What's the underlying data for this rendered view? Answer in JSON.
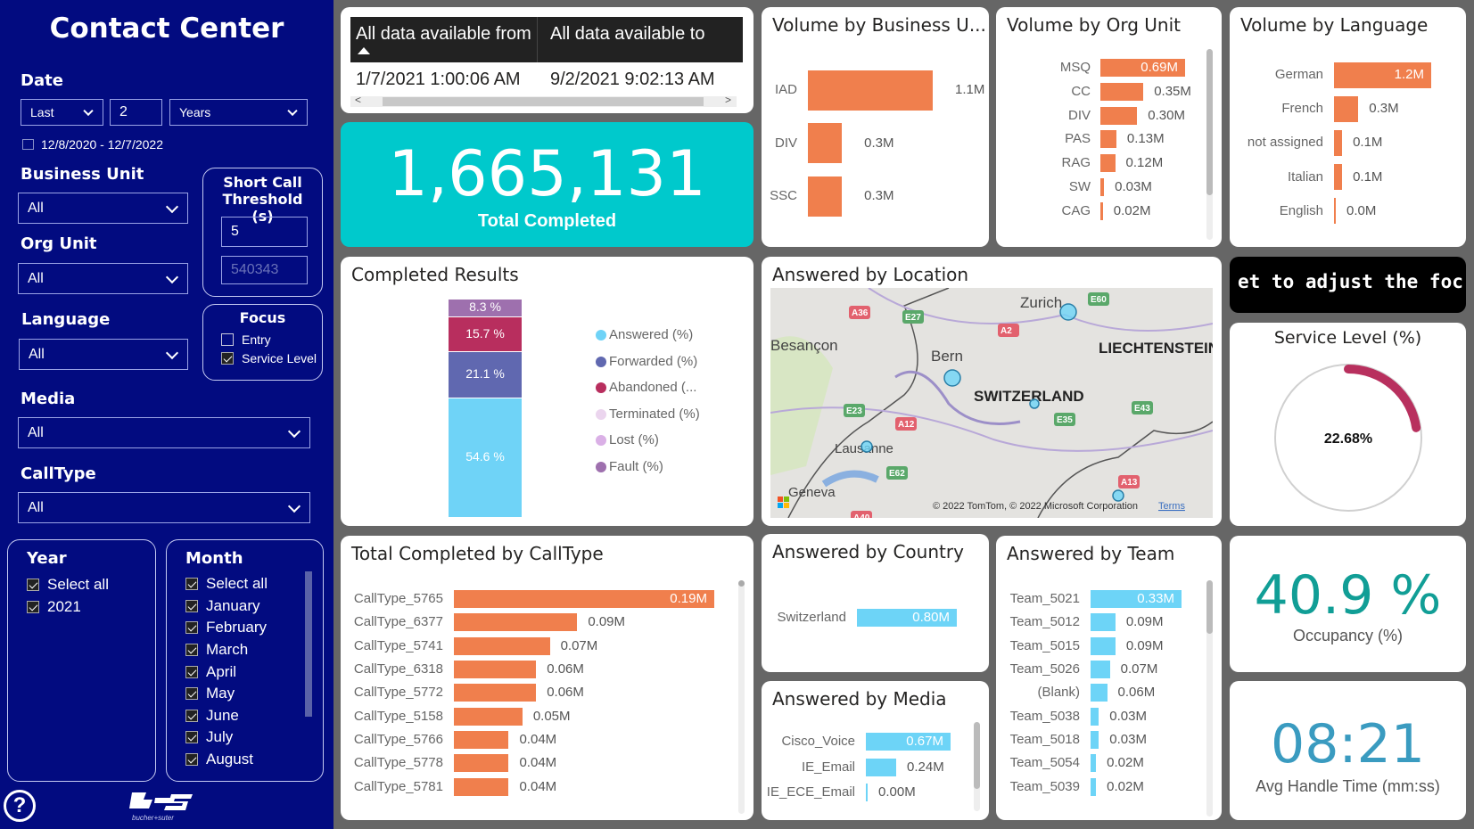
{
  "sidebar": {
    "title": "Contact Center",
    "date": {
      "label": "Date",
      "mode": "Last",
      "count": "2",
      "unit": "Years",
      "range": "12/8/2020 - 12/7/2022"
    },
    "business_unit": {
      "label": "Business Unit",
      "value": "All"
    },
    "org_unit": {
      "label": "Org Unit",
      "value": "All"
    },
    "language": {
      "label": "Language",
      "value": "All"
    },
    "media": {
      "label": "Media",
      "value": "All"
    },
    "calltype": {
      "label": "CallType",
      "value": "All"
    },
    "short_call": {
      "title": "Short Call Threshold (s)",
      "value": "5",
      "secondary": "540343"
    },
    "focus": {
      "title": "Focus",
      "options": [
        {
          "label": "Entry",
          "checked": false
        },
        {
          "label": "Service Level",
          "checked": true
        }
      ]
    },
    "year": {
      "title": "Year",
      "items": [
        {
          "label": "Select all",
          "checked": true
        },
        {
          "label": "2021",
          "checked": true
        }
      ]
    },
    "month": {
      "title": "Month",
      "items": [
        {
          "label": "Select all",
          "checked": true
        },
        {
          "label": "January",
          "checked": true
        },
        {
          "label": "February",
          "checked": true
        },
        {
          "label": "March",
          "checked": true
        },
        {
          "label": "April",
          "checked": true
        },
        {
          "label": "May",
          "checked": true
        },
        {
          "label": "June",
          "checked": true
        },
        {
          "label": "July",
          "checked": true
        },
        {
          "label": "August",
          "checked": true
        }
      ]
    },
    "help_icon": "question-circle-icon",
    "logo_text": "bucher+suter"
  },
  "availability": {
    "headers": [
      "All data available from",
      "All data available to"
    ],
    "values": [
      "1/7/2021 1:00:06 AM",
      "9/2/2021 9:02:13 AM"
    ]
  },
  "total_completed": {
    "value": "1,665,131",
    "label": "Total Completed"
  },
  "banner": {
    "text": "et to adjust the foc"
  },
  "service_level": {
    "title": "Service Level (%)",
    "value": "22.68%",
    "percent": 22.68,
    "color": "#b8305e"
  },
  "occupancy": {
    "value": "40.9 %",
    "label": "Occupancy (%)"
  },
  "aht": {
    "value": "08:21",
    "label": "Avg Handle Time (mm:ss)"
  },
  "map": {
    "title": "Answered by Location",
    "places": [
      "Zurich",
      "Bern",
      "Lausanne",
      "Geneva",
      "Besançon",
      "SWITZERLAND",
      "LIECHTENSTEIN"
    ],
    "roads": [
      "A36",
      "E27",
      "E60",
      "A2",
      "E23",
      "A12",
      "E35",
      "E43",
      "E62",
      "A13",
      "A40"
    ],
    "attribution": "© 2022 TomTom, © 2022 Microsoft Corporation",
    "terms": "Terms"
  },
  "colors": {
    "orange": "#f07f4d",
    "blue": "#6dd4f7",
    "teal": "#00c9cc",
    "sidebar": "#020b80"
  },
  "chart_data": [
    {
      "id": "bu",
      "type": "bar",
      "title": "Volume by Business U...",
      "categories": [
        "IAD",
        "DIV",
        "SSC"
      ],
      "values": [
        1.1,
        0.3,
        0.3
      ],
      "labels": [
        "1.1M",
        "0.3M",
        "0.3M"
      ],
      "color": "#f07f4d"
    },
    {
      "id": "org",
      "type": "bar",
      "title": "Volume by Org Unit",
      "categories": [
        "MSQ",
        "CC",
        "DIV",
        "PAS",
        "RAG",
        "SW",
        "CAG"
      ],
      "values": [
        0.69,
        0.35,
        0.3,
        0.13,
        0.12,
        0.03,
        0.02
      ],
      "labels": [
        "0.69M",
        "0.35M",
        "0.30M",
        "0.13M",
        "0.12M",
        "0.03M",
        "0.02M"
      ],
      "color": "#f07f4d"
    },
    {
      "id": "lang",
      "type": "bar",
      "title": "Volume by Language",
      "categories": [
        "German",
        "French",
        "not assigned",
        "Italian",
        "English"
      ],
      "values": [
        1.2,
        0.3,
        0.1,
        0.1,
        0.0
      ],
      "labels": [
        "1.2M",
        "0.3M",
        "0.1M",
        "0.1M",
        "0.0M"
      ],
      "color": "#f07f4d"
    },
    {
      "id": "results",
      "type": "bar",
      "stacked": true,
      "title": "Completed Results",
      "series": [
        {
          "name": "Answered (%)",
          "value": 54.6,
          "label": "54.6 %",
          "color": "#6fd3f7"
        },
        {
          "name": "Forwarded (%)",
          "value": 21.1,
          "label": "21.1 %",
          "color": "#6068b0"
        },
        {
          "name": "Abandoned (...",
          "value": 15.7,
          "label": "15.7 %",
          "color": "#b82e5e"
        },
        {
          "name": "Terminated (%)",
          "value": 0,
          "label": "",
          "color": "#ebd5ee"
        },
        {
          "name": "Lost (%)",
          "value": 0,
          "label": "",
          "color": "#dab0e6"
        },
        {
          "name": "Fault (%)",
          "value": 8.3,
          "label": "8.3 %",
          "color": "#9e70ae"
        }
      ],
      "legend": "right"
    },
    {
      "id": "calltype",
      "type": "bar",
      "title": "Total Completed by CallType",
      "categories": [
        "CallType_5765",
        "CallType_6377",
        "CallType_5741",
        "CallType_6318",
        "CallType_5772",
        "CallType_5158",
        "CallType_5766",
        "CallType_5778",
        "CallType_5781"
      ],
      "values": [
        0.19,
        0.09,
        0.07,
        0.06,
        0.06,
        0.05,
        0.04,
        0.04,
        0.04
      ],
      "labels": [
        "0.19M",
        "0.09M",
        "0.07M",
        "0.06M",
        "0.06M",
        "0.05M",
        "0.04M",
        "0.04M",
        "0.04M"
      ],
      "color": "#f07f4d"
    },
    {
      "id": "country",
      "type": "bar",
      "title": "Answered by Country",
      "categories": [
        "Switzerland"
      ],
      "values": [
        0.8
      ],
      "labels": [
        "0.80M"
      ],
      "color": "#6dd4f7"
    },
    {
      "id": "media",
      "type": "bar",
      "title": "Answered by Media",
      "categories": [
        "Cisco_Voice",
        "IE_Email",
        "IE_ECE_Email"
      ],
      "values": [
        0.67,
        0.24,
        0.0
      ],
      "labels": [
        "0.67M",
        "0.24M",
        "0.00M"
      ],
      "color": "#6dd4f7"
    },
    {
      "id": "team",
      "type": "bar",
      "title": "Answered by Team",
      "categories": [
        "Team_5021",
        "Team_5012",
        "Team_5015",
        "Team_5026",
        "(Blank)",
        "Team_5038",
        "Team_5018",
        "Team_5054",
        "Team_5039"
      ],
      "values": [
        0.33,
        0.09,
        0.09,
        0.07,
        0.06,
        0.03,
        0.03,
        0.02,
        0.02
      ],
      "labels": [
        "0.33M",
        "0.09M",
        "0.09M",
        "0.07M",
        "0.06M",
        "0.03M",
        "0.03M",
        "0.02M",
        "0.02M"
      ],
      "color": "#6dd4f7"
    }
  ]
}
